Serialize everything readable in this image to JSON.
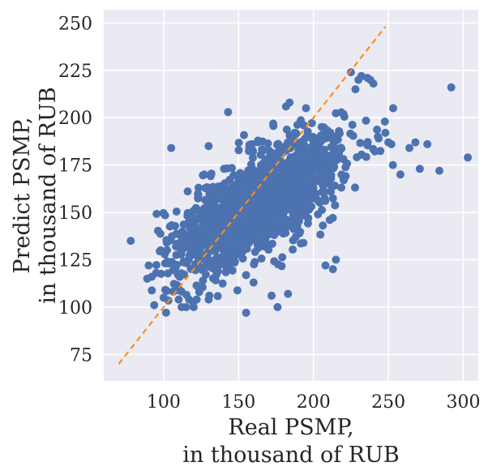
{
  "chart_data": {
    "type": "scatter",
    "title": "",
    "xlabel_lines": [
      "Real PSMP,",
      "in thousand of RUB"
    ],
    "ylabel_lines": [
      "Predict PSMP,",
      "in thousand of RUB"
    ],
    "xlim": [
      60,
      310
    ],
    "ylim": [
      61,
      257
    ],
    "x_ticks": [
      100,
      150,
      200,
      250,
      300
    ],
    "y_ticks": [
      75,
      100,
      125,
      150,
      175,
      200,
      225,
      250
    ],
    "grid": true,
    "background_color": "#EAEAF2",
    "grid_color": "#FFFFFF",
    "point_color": "#4C72B0",
    "reference_line": {
      "x": [
        70,
        248
      ],
      "y": [
        70,
        248
      ],
      "style": "dashed",
      "color": "#FF8C1A"
    },
    "seed": 20240611,
    "cloud": {
      "count": 1500,
      "x_mean": 163,
      "x_std": 28,
      "slope": 0.45,
      "intercept": 81,
      "noise_std": 13
    },
    "explicit_points": [
      [
        78,
        135
      ],
      [
        89,
        115
      ],
      [
        90,
        122
      ],
      [
        92,
        116
      ],
      [
        95,
        118
      ],
      [
        98,
        130
      ],
      [
        100,
        105
      ],
      [
        105,
        184
      ],
      [
        110,
        104
      ],
      [
        112,
        100
      ],
      [
        115,
        100
      ],
      [
        117,
        104
      ],
      [
        120,
        100
      ],
      [
        122,
        104
      ],
      [
        130,
        104
      ],
      [
        130,
        185
      ],
      [
        143,
        203
      ],
      [
        155,
        97
      ],
      [
        160,
        113
      ],
      [
        172,
        106
      ],
      [
        176,
        100
      ],
      [
        183,
        107
      ],
      [
        184,
        208
      ],
      [
        195,
        205
      ],
      [
        208,
        122
      ],
      [
        213,
        120
      ],
      [
        215,
        125
      ],
      [
        225,
        224
      ],
      [
        228,
        215
      ],
      [
        230,
        220
      ],
      [
        232,
        222
      ],
      [
        236,
        221
      ],
      [
        238,
        220
      ],
      [
        240,
        218
      ],
      [
        243,
        190
      ],
      [
        248,
        192
      ],
      [
        250,
        187
      ],
      [
        252,
        186
      ],
      [
        253,
        175
      ],
      [
        258,
        170
      ],
      [
        264,
        184
      ],
      [
        268,
        187
      ],
      [
        271,
        173
      ],
      [
        276,
        186
      ],
      [
        284,
        172
      ],
      [
        292,
        216
      ],
      [
        303,
        179
      ]
    ]
  }
}
